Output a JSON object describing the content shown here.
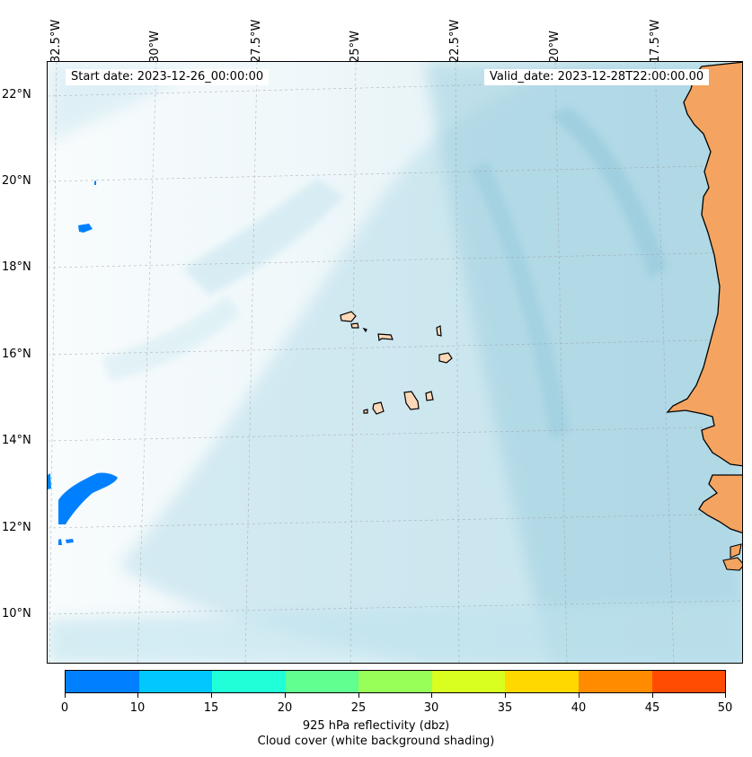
{
  "map": {
    "longitude_labels": [
      "32.5°W",
      "30°W",
      "27.5°W",
      "25°W",
      "22.5°W",
      "20°W",
      "17.5°W"
    ],
    "latitude_labels": [
      "22°N",
      "20°N",
      "18°N",
      "16°N",
      "14°N",
      "12°N",
      "10°N"
    ],
    "start_date": "Start date: 2023-12-26_00:00:00",
    "valid_date": "Valid_date: 2023-12-28T22:00:00.00",
    "land_color": "#f4a460",
    "island_color": "#fcd9b8",
    "cloud_color": "#add8e6",
    "reflectivity_color": "#0080ff"
  },
  "colorbar": {
    "ticks": [
      "0",
      "10",
      "15",
      "20",
      "25",
      "30",
      "35",
      "40",
      "45",
      "50"
    ],
    "colors": [
      "#0080ff",
      "#00c8ff",
      "#20ffd8",
      "#60ff90",
      "#98ff58",
      "#d8ff20",
      "#ffd800",
      "#ff8c00",
      "#ff4c00"
    ],
    "label": "925 hPa reflectivity (dbz)",
    "sublabel": "Cloud cover (white background shading)"
  }
}
